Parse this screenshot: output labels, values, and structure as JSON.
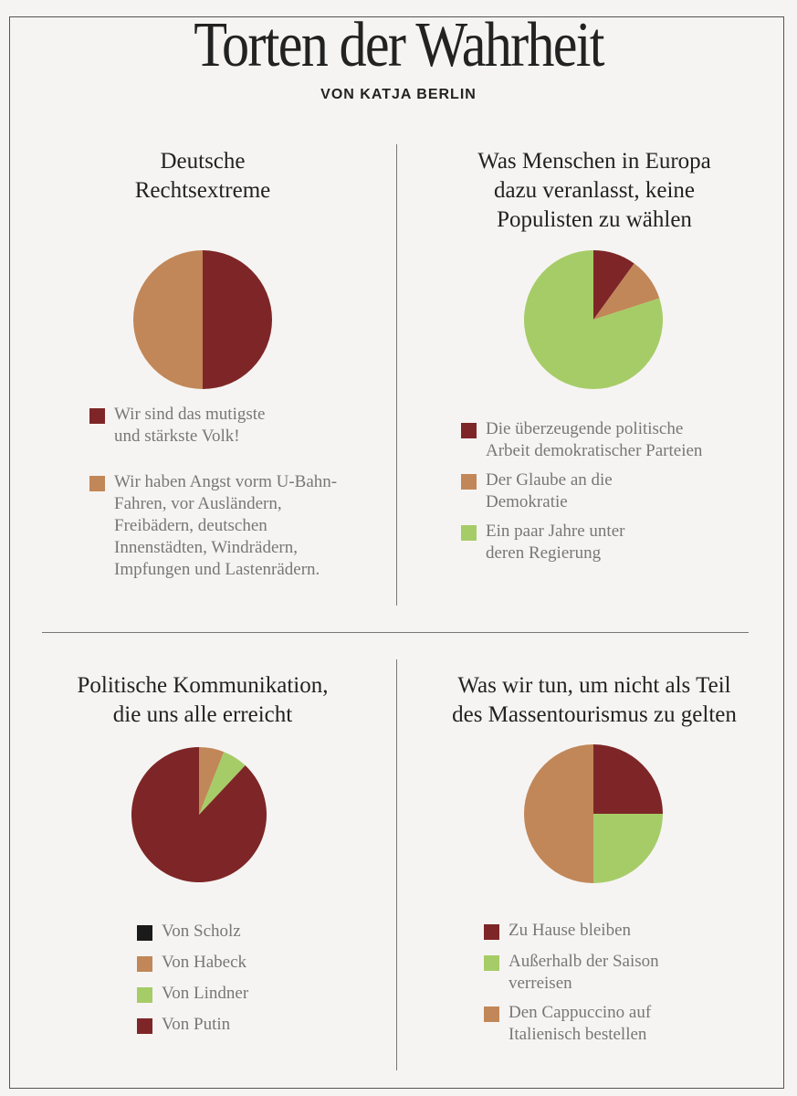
{
  "header": {
    "title": "Torten der Wahrheit",
    "byline": "VON KATJA BERLIN"
  },
  "colors": {
    "dark_red": "#7e2627",
    "tan": "#c18758",
    "green": "#a6cc68",
    "black": "#1a1a1a"
  },
  "chart_data": [
    {
      "type": "pie",
      "title_lines": [
        "Deutsche",
        "Rechtsextreme"
      ],
      "slices": [
        {
          "label_lines": [
            "Wir sind das mutigste",
            "und stärkste Volk!"
          ],
          "value": 50,
          "color": "#7e2627"
        },
        {
          "label_lines": [
            "Wir haben Angst vorm U-Bahn-",
            "Fahren, vor Ausländern,",
            "Freibädern, deutschen",
            "Innenstädten, Windrädern,",
            "Impfungen und Lastenrädern."
          ],
          "value": 50,
          "color": "#c18758"
        }
      ]
    },
    {
      "type": "pie",
      "title_lines": [
        "Was Menschen in Europa",
        "dazu veranlasst, keine",
        "Populisten zu wählen"
      ],
      "slices": [
        {
          "label_lines": [
            "Die überzeugende politische",
            "Arbeit demokratischer Parteien"
          ],
          "value": 10,
          "color": "#7e2627"
        },
        {
          "label_lines": [
            "Der Glaube an die",
            "Demokratie"
          ],
          "value": 10,
          "color": "#c18758"
        },
        {
          "label_lines": [
            "Ein paar Jahre unter",
            "deren Regierung"
          ],
          "value": 80,
          "color": "#a6cc68"
        }
      ]
    },
    {
      "type": "pie",
      "title_lines": [
        "Politische Kommunikation,",
        "die uns alle erreicht"
      ],
      "slices": [
        {
          "label_lines": [
            "Von Scholz"
          ],
          "value": 0,
          "color": "#1a1a1a"
        },
        {
          "label_lines": [
            "Von Habeck"
          ],
          "value": 6,
          "color": "#c18758"
        },
        {
          "label_lines": [
            "Von Lindner"
          ],
          "value": 6,
          "color": "#a6cc68"
        },
        {
          "label_lines": [
            "Von Putin"
          ],
          "value": 88,
          "color": "#7e2627"
        }
      ]
    },
    {
      "type": "pie",
      "title_lines": [
        "Was wir tun, um nicht als Teil",
        "des Massentourismus zu gelten"
      ],
      "slices": [
        {
          "label_lines": [
            "Zu Hause bleiben"
          ],
          "value": 25,
          "color": "#7e2627"
        },
        {
          "label_lines": [
            "Außerhalb der Saison",
            "verreisen"
          ],
          "value": 25,
          "color": "#a6cc68"
        },
        {
          "label_lines": [
            "Den Cappuccino auf",
            "Italienisch bestellen"
          ],
          "value": 50,
          "color": "#c18758"
        }
      ]
    }
  ]
}
